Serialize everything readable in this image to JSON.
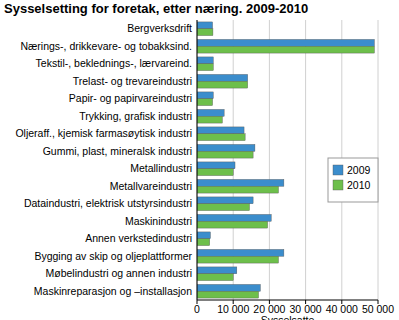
{
  "chart_data": {
    "type": "bar",
    "orientation": "horizontal",
    "title": "Sysselsetting for foretak, etter næring. 2009-2010",
    "x_label": "Sysselsatte",
    "categories": [
      "Bergverksdrift",
      "Nærings-, drikkevare- og tobakksind.",
      "Tekstil-, beklednings-, lærvareind.",
      "Trelast- og trevareindustri",
      "Papir- og papirvareindustri",
      "Trykking, grafisk industri",
      "Oljeraff., kjemisk farmasøytisk industri",
      "Gummi, plast, mineralsk industri",
      "Metallindustri",
      "Metallvareindustri",
      "Dataindustri, elektrisk utstyrsindustri",
      "Maskinindustri",
      "Annen verkstedindustri",
      "Bygging av skip og oljeplattformer",
      "Møbelindustri og annen industri",
      "Maskinreparasjon og –installasjon"
    ],
    "series": [
      {
        "name": "2009",
        "color": "#3b8dcc",
        "values": [
          4300,
          49000,
          4500,
          14000,
          4500,
          7500,
          13000,
          16000,
          10500,
          24000,
          15500,
          20500,
          3700,
          24000,
          11000,
          17500
        ]
      },
      {
        "name": "2010",
        "color": "#6dbf4b",
        "values": [
          4400,
          49000,
          4500,
          14000,
          4300,
          7000,
          13300,
          15500,
          10000,
          22500,
          14500,
          19500,
          3500,
          22500,
          10000,
          17000
        ]
      }
    ],
    "xlim": [
      0,
      50000
    ],
    "xticks": [
      0,
      {
        "value": 10000,
        "label": "10 000"
      },
      {
        "value": 20000,
        "label": "20 000"
      },
      {
        "value": 30000,
        "label": "30 000"
      },
      {
        "value": 40000,
        "label": "40 000"
      },
      {
        "value": 50000,
        "label": "50 000"
      }
    ],
    "grid": true,
    "legend": "right"
  }
}
